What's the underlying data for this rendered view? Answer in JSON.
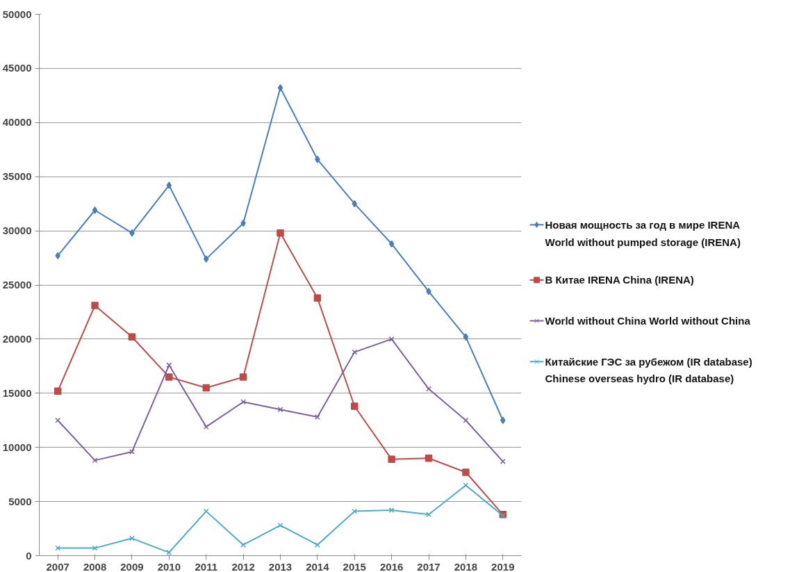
{
  "chart_data": {
    "type": "line",
    "categories": [
      "2007",
      "2008",
      "2009",
      "2010",
      "2011",
      "2012",
      "2013",
      "2014",
      "2015",
      "2016",
      "2017",
      "2018",
      "2019"
    ],
    "series": [
      {
        "name": "Новая мощность за год в мире IRENA\nWorld without pumped storage (IRENA)",
        "color": "#4a7ebb",
        "marker": "diamond",
        "values": [
          27700,
          31900,
          29800,
          34200,
          27400,
          30700,
          43200,
          36600,
          32500,
          28800,
          24400,
          20200,
          12500
        ]
      },
      {
        "name": "В Китае IRENA China (IRENA)",
        "color": "#be4b48",
        "marker": "square",
        "values": [
          15200,
          23100,
          20200,
          16500,
          15500,
          16500,
          29800,
          23800,
          13800,
          8900,
          9000,
          7700,
          3800
        ]
      },
      {
        "name": "World without China World without China",
        "color": "#7d60a0",
        "marker": "cross",
        "values": [
          12500,
          8800,
          9600,
          17600,
          11900,
          14200,
          13500,
          12800,
          18800,
          20000,
          15400,
          12500,
          8700
        ]
      },
      {
        "name": "Китайские ГЭС за рубежом (IR database)\nChinese overseas  hydro (IR database)",
        "color": "#4bacc6",
        "marker": "cross",
        "values": [
          700,
          700,
          1600,
          300,
          4100,
          1000,
          2800,
          1000,
          4100,
          4200,
          3800,
          6500,
          3700
        ]
      }
    ],
    "ylim": [
      0,
      50000
    ],
    "yticks": [
      0,
      5000,
      10000,
      15000,
      20000,
      25000,
      30000,
      35000,
      40000,
      45000,
      50000
    ],
    "grid": "y",
    "legend": "right",
    "line_style": "solid"
  }
}
